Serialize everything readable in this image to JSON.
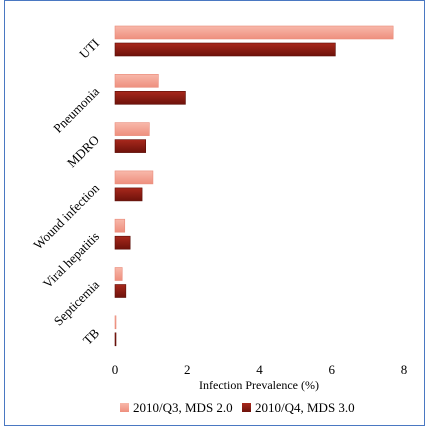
{
  "chart_data": {
    "type": "bar",
    "orientation": "horizontal",
    "categories": [
      "UTI",
      "Pneumonia",
      "MDRO",
      "Wound infection",
      "Viral hepatitis",
      "Septicemia",
      "TB"
    ],
    "series": [
      {
        "name": "2010/Q3, MDS 2.0",
        "color": "#f4a090",
        "values": [
          7.7,
          1.2,
          0.95,
          1.05,
          0.27,
          0.2,
          0.02
        ]
      },
      {
        "name": "2010/Q4, MDS 3.0",
        "color": "#8b1a12",
        "values": [
          6.1,
          1.95,
          0.85,
          0.75,
          0.42,
          0.3,
          0.02
        ]
      }
    ],
    "xlabel": "Infection Prevalence (%)",
    "xlim": [
      0,
      8
    ],
    "xticks": [
      "0",
      "2",
      "4",
      "6",
      "8"
    ],
    "grid": false,
    "legend_position": "bottom"
  }
}
